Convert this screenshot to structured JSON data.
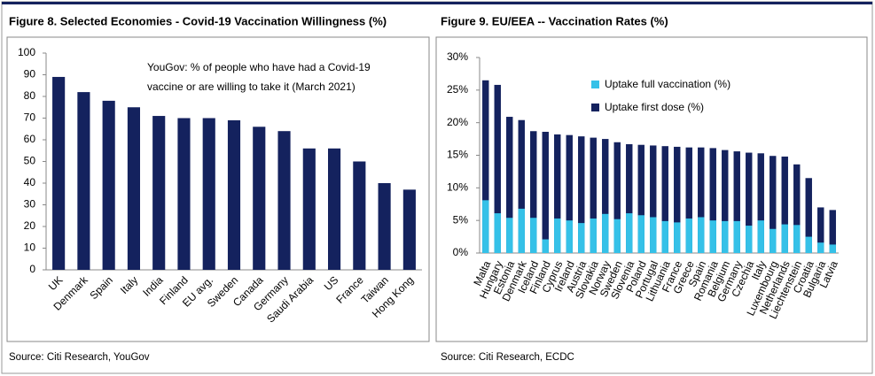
{
  "chart_data": [
    {
      "type": "bar",
      "title": "Figure 8. Selected Economies - Covid-19 Vaccination Willingness (%)",
      "annotation": [
        "YouGov: % of people who have had a Covid-19",
        "vaccine or are willing to take it (March 2021)"
      ],
      "categories": [
        "UK",
        "Denmark",
        "Spain",
        "Italy",
        "India",
        "Finland",
        "EU avg.",
        "Sweden",
        "Canada",
        "Germany",
        "Saudi Arabia",
        "US",
        "France",
        "Taiwan",
        "Hong Kong"
      ],
      "values": [
        89,
        82,
        78,
        75,
        71,
        70,
        70,
        69,
        66,
        64,
        56,
        56,
        50,
        40,
        37
      ],
      "color": "#14225e",
      "ylim": [
        0,
        100
      ],
      "yticks": [
        0,
        10,
        20,
        30,
        40,
        50,
        60,
        70,
        80,
        90,
        100
      ],
      "source": "Source: Citi Research, YouGov"
    },
    {
      "type": "overlap_bar",
      "title": "Figure 9. EU/EEA -- Vaccination Rates (%)",
      "categories": [
        "Malta",
        "Hungary",
        "Estonia",
        "Denmark",
        "Iceland",
        "Finland",
        "Cyprus",
        "Ireland",
        "Austria",
        "Slovakia",
        "Norway",
        "Sweden",
        "Slovenia",
        "Poland",
        "Portugal",
        "Lithuania",
        "France",
        "Greece",
        "Spain",
        "Romania",
        "Belgium",
        "Germany",
        "Czechia",
        "Italy",
        "Luxembourg",
        "Netherlands",
        "Liechtenstein",
        "Croatia",
        "Bulgaria",
        "Latvia"
      ],
      "series": [
        {
          "name": "Uptake first dose (%)",
          "color": "#14225e",
          "values": [
            26.5,
            25.8,
            20.9,
            20.4,
            18.7,
            18.6,
            18.2,
            18.1,
            17.9,
            17.7,
            17.5,
            17.0,
            16.7,
            16.6,
            16.5,
            16.4,
            16.3,
            16.2,
            16.2,
            16.1,
            15.8,
            15.6,
            15.4,
            15.3,
            14.9,
            14.8,
            13.6,
            11.5,
            7.0,
            6.6
          ]
        },
        {
          "name": "Uptake full vaccination (%)",
          "color": "#35c1e8",
          "values": [
            8.1,
            6.1,
            5.4,
            6.8,
            5.4,
            2.1,
            5.3,
            5.0,
            4.6,
            5.3,
            6.0,
            5.2,
            6.1,
            5.8,
            5.5,
            4.9,
            4.7,
            5.3,
            5.5,
            5.0,
            4.9,
            4.9,
            4.2,
            5.0,
            3.7,
            4.4,
            4.3,
            2.5,
            1.6,
            1.3
          ]
        }
      ],
      "ylim": [
        0,
        30
      ],
      "yticks": [
        {
          "value": 0,
          "label": "0%"
        },
        {
          "value": 5,
          "label": "5%"
        },
        {
          "value": 10,
          "label": "10%"
        },
        {
          "value": 15,
          "label": "15%"
        },
        {
          "value": 20,
          "label": "20%"
        },
        {
          "value": 25,
          "label": "25%"
        },
        {
          "value": 30,
          "label": "30%"
        }
      ],
      "source": "Source: Citi Research, ECDC"
    }
  ]
}
